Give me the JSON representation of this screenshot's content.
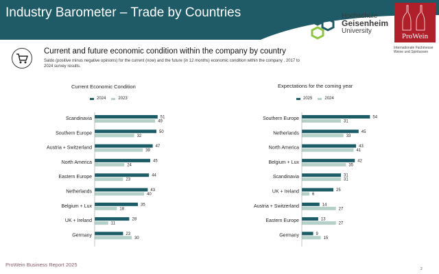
{
  "header": {
    "title": "Industry Barometer – Trade by Countries",
    "bg_color": "#1e5b66"
  },
  "logos": {
    "hochschule": {
      "line1": "Hochschule",
      "line2": "Geisenheim",
      "line3": "University"
    },
    "prowein": {
      "label": "ProWein",
      "tagline1": "Internationale Fachmesse",
      "tagline2": "Weine und Spirituosen"
    }
  },
  "section": {
    "icon": "shopping-cart-icon",
    "title": "Current and future economic condition within the company by country",
    "description": "Saldo (positive minus negative opinions) for the current (now) and the future (in 12 months) economic condition within the company , 2017 to 2024 survey results."
  },
  "footer": {
    "text": "ProWein Business Report 2025",
    "page": "2"
  },
  "colors": {
    "dark": "#1c5c66",
    "light": "#b5cfc9"
  },
  "chart_data": [
    {
      "type": "bar",
      "orientation": "horizontal",
      "title": "Current Economic Condition",
      "legend": [
        "2024",
        "2023"
      ],
      "categories": [
        "Scandinavia",
        "Southern Europe",
        "Austria + Switzerland",
        "North America",
        "Eastern Europe",
        "Netherlands",
        "Belgium + Lux",
        "UK + Ireland",
        "Germany"
      ],
      "series": [
        {
          "name": "2024",
          "values": [
            51,
            50,
            47,
            45,
            44,
            43,
            35,
            28,
            23
          ]
        },
        {
          "name": "2023",
          "values": [
            49,
            32,
            39,
            24,
            23,
            40,
            18,
            11,
            30
          ]
        }
      ],
      "xlim": [
        0,
        60
      ]
    },
    {
      "type": "bar",
      "orientation": "horizontal",
      "title": "Expectations for the coming year",
      "legend": [
        "2025",
        "2024"
      ],
      "categories": [
        "Southern Europe",
        "Netherlands",
        "North America",
        "Belgium + Lux",
        "Scandinavia",
        "UK + Ireland",
        "Austria + Switzerland",
        "Eastern Europe",
        "Germany"
      ],
      "series": [
        {
          "name": "2025",
          "values": [
            54,
            45,
            43,
            42,
            31,
            25,
            14,
            13,
            9
          ]
        },
        {
          "name": "2024",
          "values": [
            31,
            33,
            41,
            35,
            31,
            6,
            27,
            27,
            15
          ]
        }
      ],
      "xlim": [
        0,
        60
      ]
    }
  ]
}
